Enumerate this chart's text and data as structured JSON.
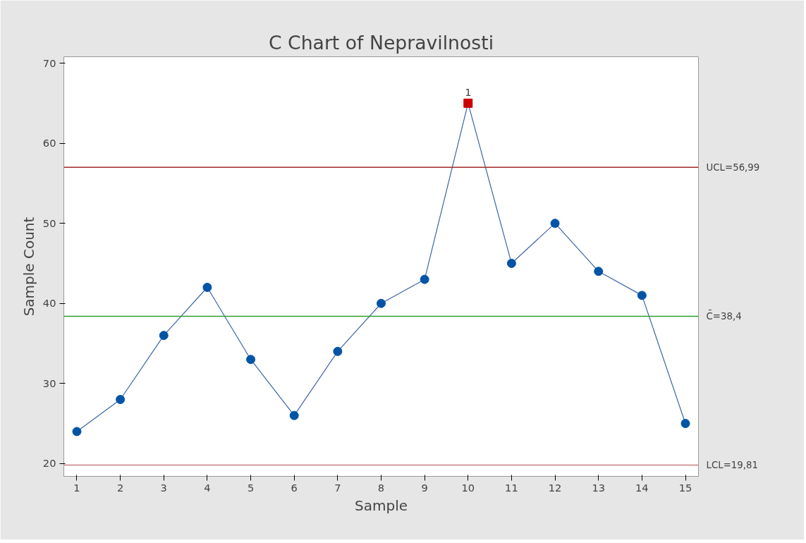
{
  "chart_data": {
    "type": "line",
    "title": "C Chart of Nepravilnosti",
    "xlabel": "Sample",
    "ylabel": "Sample Count",
    "x": [
      1,
      2,
      3,
      4,
      5,
      6,
      7,
      8,
      9,
      10,
      11,
      12,
      13,
      14,
      15
    ],
    "series": [
      {
        "color": "#3a64a8",
        "marker": "none",
        "line_style": "solid",
        "values": [
          24,
          28,
          36,
          42,
          33,
          26,
          34,
          40,
          43,
          65,
          45,
          50,
          44,
          41,
          25
        ]
      },
      {
        "type": "scatter",
        "color": "#0054a6",
        "marker": "circle",
        "x": [
          1,
          2,
          3,
          4,
          5,
          6,
          7,
          8,
          9,
          11,
          12,
          13,
          14,
          15
        ],
        "values": [
          24,
          28,
          36,
          42,
          33,
          26,
          34,
          40,
          43,
          45,
          50,
          44,
          41,
          25
        ]
      },
      {
        "type": "scatter",
        "color": "#cc0000",
        "marker": "square",
        "x": [
          10
        ],
        "values": [
          65
        ]
      }
    ],
    "annotations": [
      {
        "text": "1",
        "x": 10,
        "y": 65
      }
    ],
    "ref_lines": [
      {
        "axis": "y",
        "value": 56.99,
        "label": "UCL=56,99",
        "color": "#a52a2a"
      },
      {
        "axis": "y",
        "value": 38.4,
        "label": "C̄=38,4",
        "color": "#2ca02c"
      },
      {
        "axis": "y",
        "value": 19.81,
        "label": "LCL=19,81",
        "color": "#c98080"
      }
    ],
    "xlim": [
      0.7,
      15.3
    ],
    "xticks": [
      1,
      2,
      3,
      4,
      5,
      6,
      7,
      8,
      9,
      10,
      11,
      12,
      13,
      14,
      15
    ],
    "ylim": [
      18.4,
      70.8
    ],
    "yticks": [
      20,
      30,
      40,
      50,
      60,
      70
    ],
    "grid": false
  }
}
